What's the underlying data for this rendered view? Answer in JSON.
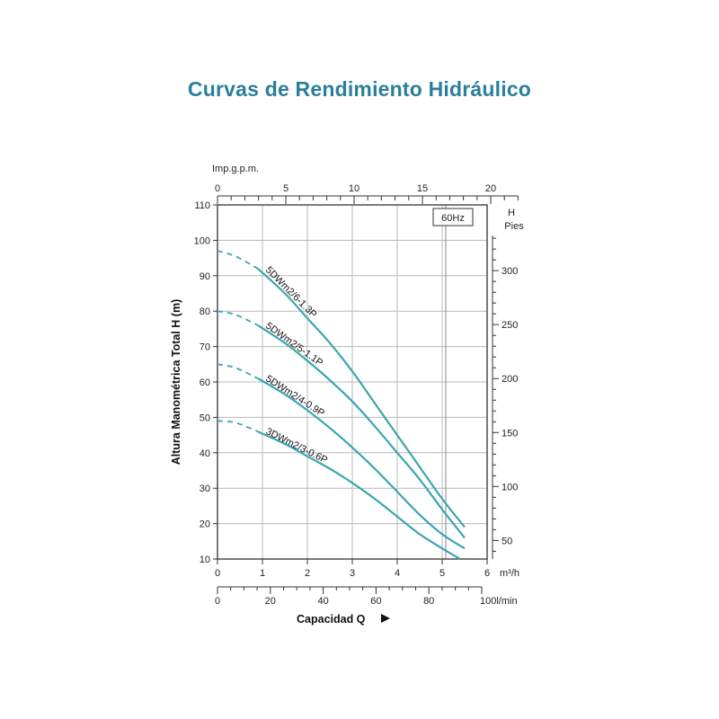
{
  "page": {
    "title": "Curvas de Rendimiento Hidráulico",
    "title_color": "#2a7f9a"
  },
  "chart_data": {
    "type": "line",
    "frequency_label": "60Hz",
    "curve_color": "#3aa6b2",
    "left_axis": {
      "label": "Altura Manométrica Total H (m)",
      "range": [
        10,
        110
      ],
      "ticks": [
        10,
        20,
        30,
        40,
        50,
        60,
        70,
        80,
        90,
        100,
        110
      ]
    },
    "right_axis": {
      "label": "H",
      "unit": "Pies",
      "ticks": [
        50,
        100,
        150,
        200,
        250,
        300
      ]
    },
    "bottom_axis_m3h": {
      "unit": "m³/h",
      "range": [
        0,
        6
      ],
      "ticks": [
        0,
        1,
        2,
        3,
        4,
        5,
        6
      ]
    },
    "bottom_axis_lmin": {
      "unit": "l/min",
      "range": [
        0,
        100
      ],
      "ticks": [
        0,
        20,
        40,
        60,
        80,
        100
      ]
    },
    "top_axis": {
      "label": "Imp.g.p.m.",
      "range": [
        0,
        22
      ],
      "ticks": [
        0,
        5,
        10,
        15,
        20
      ]
    },
    "xlabel": "Capacidad Q",
    "series": [
      {
        "name": "5DWm2/6-1.3P",
        "dashed_points": [
          [
            0,
            97
          ],
          [
            0.4,
            95.5
          ],
          [
            0.9,
            92
          ]
        ],
        "points": [
          [
            0.9,
            92
          ],
          [
            1.5,
            85
          ],
          [
            2.0,
            78
          ],
          [
            2.5,
            71
          ],
          [
            3.0,
            63
          ],
          [
            3.5,
            54
          ],
          [
            4.0,
            45
          ],
          [
            4.5,
            36
          ],
          [
            5.0,
            27
          ],
          [
            5.5,
            19
          ]
        ]
      },
      {
        "name": "5DWm2/5-1.1P",
        "dashed_points": [
          [
            0,
            80
          ],
          [
            0.4,
            79
          ],
          [
            0.9,
            76
          ]
        ],
        "points": [
          [
            0.9,
            76
          ],
          [
            1.5,
            71
          ],
          [
            2.0,
            66
          ],
          [
            2.5,
            60.5
          ],
          [
            3.0,
            54.5
          ],
          [
            3.5,
            47.5
          ],
          [
            4.0,
            40
          ],
          [
            4.5,
            32.5
          ],
          [
            5.0,
            24
          ],
          [
            5.5,
            16
          ]
        ]
      },
      {
        "name": "5DWm2/4-0.9P",
        "dashed_points": [
          [
            0,
            65
          ],
          [
            0.4,
            64
          ],
          [
            0.9,
            61
          ]
        ],
        "points": [
          [
            0.9,
            61
          ],
          [
            1.5,
            56.5
          ],
          [
            2.0,
            52
          ],
          [
            2.5,
            47
          ],
          [
            3.0,
            41.5
          ],
          [
            3.5,
            35.5
          ],
          [
            4.0,
            29
          ],
          [
            4.5,
            22.5
          ],
          [
            5.0,
            17
          ],
          [
            5.5,
            13
          ]
        ]
      },
      {
        "name": "3DWm2/3-0.6P",
        "dashed_points": [
          [
            0,
            49
          ],
          [
            0.4,
            48.5
          ],
          [
            0.9,
            46
          ]
        ],
        "points": [
          [
            0.9,
            46
          ],
          [
            1.5,
            42.5
          ],
          [
            2.0,
            39
          ],
          [
            2.5,
            35.5
          ],
          [
            3.0,
            31.5
          ],
          [
            3.5,
            27
          ],
          [
            4.0,
            22
          ],
          [
            4.5,
            17
          ],
          [
            5.0,
            13
          ],
          [
            5.4,
            10
          ]
        ]
      }
    ]
  }
}
